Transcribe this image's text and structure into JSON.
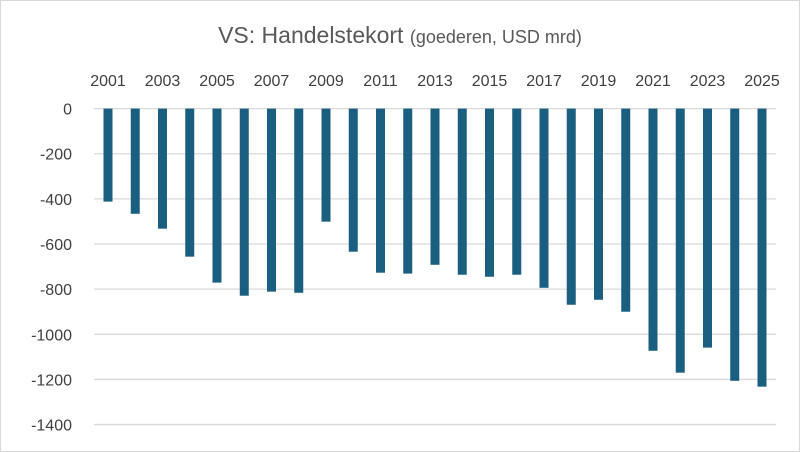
{
  "chart_data": {
    "type": "bar",
    "title": "VS: Handelstekort",
    "subtitle": "(goederen, USD mrd)",
    "xlabel": "",
    "ylabel": "",
    "categories": [
      "2001",
      "2002",
      "2003",
      "2004",
      "2005",
      "2006",
      "2007",
      "2008",
      "2009",
      "2010",
      "2011",
      "2012",
      "2013",
      "2014",
      "2015",
      "2016",
      "2017",
      "2018",
      "2019",
      "2020",
      "2021",
      "2022",
      "2023",
      "2024",
      "2025"
    ],
    "x_tick_labels": [
      "2001",
      "2003",
      "2005",
      "2007",
      "2009",
      "2011",
      "2013",
      "2015",
      "2017",
      "2019",
      "2021",
      "2023",
      "2025"
    ],
    "values": [
      -412,
      -466,
      -532,
      -656,
      -771,
      -829,
      -811,
      -816,
      -501,
      -634,
      -727,
      -731,
      -692,
      -736,
      -745,
      -736,
      -794,
      -869,
      -847,
      -900,
      -1073,
      -1170,
      -1059,
      -1206,
      -1232
    ],
    "ylim": [
      -1400,
      0
    ],
    "y_ticks": [
      0,
      -200,
      -400,
      -600,
      -800,
      -1000,
      -1200,
      -1400
    ],
    "grid": true,
    "x_axis_position": "top",
    "legend": "none",
    "colors": {
      "bar": "#1a5e80",
      "grid": "#d9d9d9"
    }
  }
}
